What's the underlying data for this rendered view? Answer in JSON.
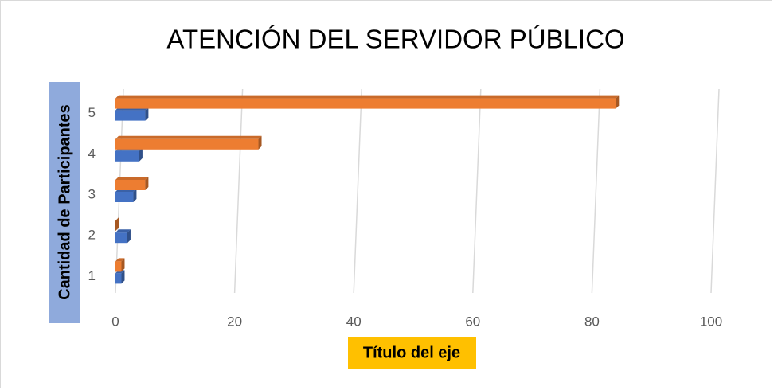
{
  "chart_data": {
    "type": "bar",
    "orientation": "horizontal",
    "title": "ATENCIÓN DEL SERVIDOR PÚBLICO",
    "x_label": "Título del eje",
    "y_label": "Cantidad de Participantes",
    "categories": [
      "1",
      "2",
      "3",
      "4",
      "5"
    ],
    "series": [
      {
        "color": "#4472c4",
        "values": [
          1,
          2,
          3,
          4,
          5
        ]
      },
      {
        "color": "#ed7d31",
        "values": [
          1,
          0,
          5,
          24,
          84
        ]
      }
    ],
    "xlim": [
      0,
      100
    ],
    "xticks": [
      0,
      20,
      40,
      60,
      80,
      100
    ],
    "grid": true
  }
}
